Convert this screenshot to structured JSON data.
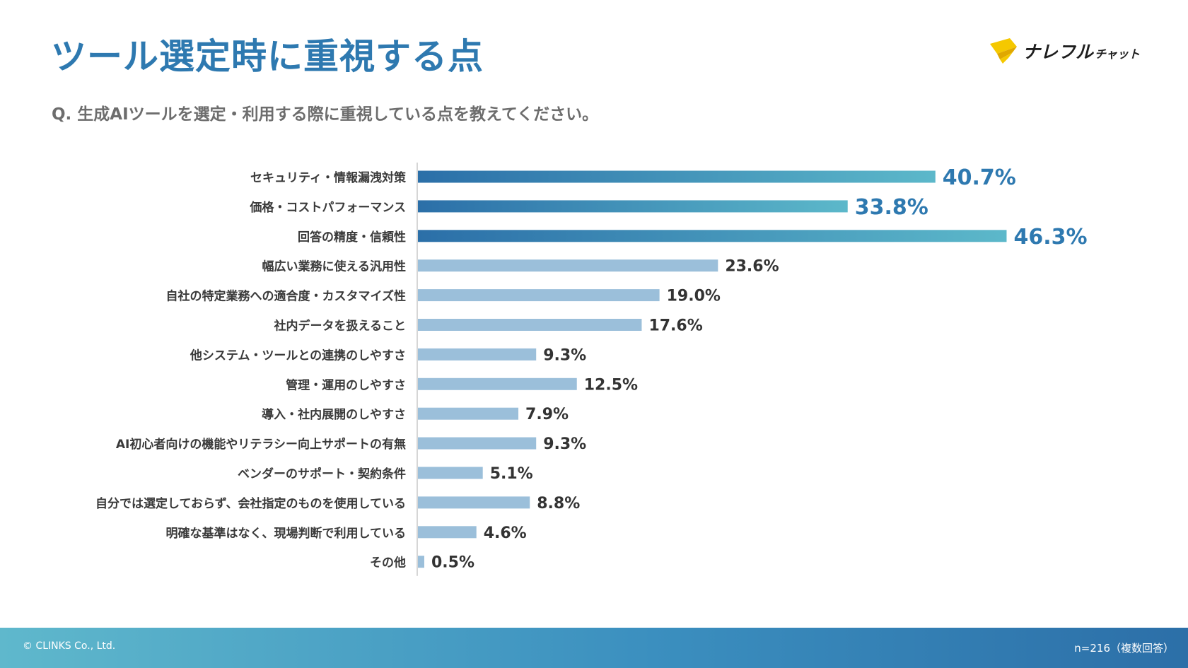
{
  "header": {
    "title": "ツール選定時に重視する点",
    "question": "Q. 生成AIツールを選定・利用する際に重視している点を教えてください。"
  },
  "logo": {
    "main": "ナレフル",
    "sub": "チャット",
    "accent_color": "#f5c800"
  },
  "footer": {
    "copyright": "© CLINKS Co., Ltd.",
    "sample_note": "n=216（複数回答）"
  },
  "colors": {
    "title": "#2e79b0",
    "highlight_bar_start": "#2b6fa8",
    "highlight_bar_end": "#5cb8ca",
    "highlight_label": "#2e79b0",
    "normal_bar": "#9bbfda",
    "normal_label": "#333333",
    "axis": "#c8c8c8"
  },
  "chart_data": {
    "type": "bar",
    "orientation": "horizontal",
    "unit": "%",
    "categories": [
      "セキュリティ・情報漏洩対策",
      "価格・コストパフォーマンス",
      "回答の精度・信頼性",
      "幅広い業務に使える汎用性",
      "自社の特定業務への適合度・カスタマイズ性",
      "社内データを扱えること",
      "他システム・ツールとの連携のしやすさ",
      "管理・運用のしやすさ",
      "導入・社内展開のしやすさ",
      "AI初心者向けの機能やリテラシー向上サポートの有無",
      "ベンダーのサポート・契約条件",
      "自分では選定しておらず、会社指定のものを使用している",
      "明確な基準はなく、現場判断で利用している",
      "その他"
    ],
    "values": [
      40.7,
      33.8,
      46.3,
      23.6,
      19.0,
      17.6,
      9.3,
      12.5,
      7.9,
      9.3,
      5.1,
      8.8,
      4.6,
      0.5
    ],
    "value_labels": [
      "40.7%",
      "33.8%",
      "46.3%",
      "23.6%",
      "19.0%",
      "17.6%",
      "9.3%",
      "12.5%",
      "7.9%",
      "9.3%",
      "5.1%",
      "8.8%",
      "4.6%",
      "0.5%"
    ],
    "highlighted": [
      true,
      true,
      true,
      false,
      false,
      false,
      false,
      false,
      false,
      false,
      false,
      false,
      false,
      false
    ],
    "xlim": [
      0,
      50
    ],
    "grid": false,
    "legend": "none"
  }
}
